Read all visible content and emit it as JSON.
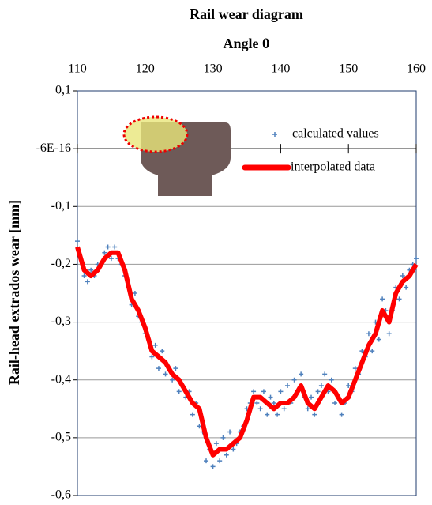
{
  "chart_data": {
    "type": "scatter",
    "title": "Rail wear diagram",
    "x_label": "Angle θ",
    "y_label": "Rail-head extrados wear  [mm]",
    "xlim": [
      110,
      160
    ],
    "xticks": [
      110,
      120,
      130,
      140,
      150,
      160
    ],
    "ylim": [
      -0.6,
      0.1
    ],
    "yticks": [
      {
        "value": 0.1,
        "label": "0,1"
      },
      {
        "value": -6e-16,
        "label": "-6E-16"
      },
      {
        "value": -0.1,
        "label": "-0,1"
      },
      {
        "value": -0.2,
        "label": "-0,2"
      },
      {
        "value": -0.3,
        "label": "-0,3"
      },
      {
        "value": -0.4,
        "label": "-0,4"
      },
      {
        "value": -0.5,
        "label": "-0,5"
      },
      {
        "value": -0.6,
        "label": "-0,6"
      }
    ],
    "grid": true,
    "legend": "upper right",
    "series": [
      {
        "name": "calculated values",
        "color": "#4f81bd",
        "marker": "+",
        "x": [
          110,
          110.5,
          111,
          111.5,
          112,
          112.5,
          113,
          113.5,
          114,
          114.5,
          115,
          115.5,
          116,
          116.5,
          117,
          117.5,
          118,
          118.5,
          119,
          119.5,
          120,
          120.5,
          121,
          121.5,
          122,
          122.5,
          123,
          123.5,
          124,
          124.5,
          125,
          125.5,
          126,
          126.5,
          127,
          127.5,
          128,
          128.5,
          129,
          129.5,
          130,
          130.5,
          131,
          131.5,
          132,
          132.5,
          133,
          133.5,
          134,
          134.5,
          135,
          135.5,
          136,
          136.5,
          137,
          137.5,
          138,
          138.5,
          139,
          139.5,
          140,
          140.5,
          141,
          141.5,
          142,
          142.5,
          143,
          143.5,
          144,
          144.5,
          145,
          145.5,
          146,
          146.5,
          147,
          147.5,
          148,
          148.5,
          149,
          149.5,
          150,
          150.5,
          151,
          151.5,
          152,
          152.5,
          153,
          153.5,
          154,
          154.5,
          155,
          155.5,
          156,
          156.5,
          157,
          157.5,
          158,
          158.5,
          159,
          159.5,
          160
        ],
        "values": [
          -0.16,
          -0.19,
          -0.22,
          -0.23,
          -0.21,
          -0.22,
          -0.2,
          -0.2,
          -0.18,
          -0.17,
          -0.19,
          -0.17,
          -0.19,
          -0.2,
          -0.22,
          -0.24,
          -0.27,
          -0.25,
          -0.29,
          -0.3,
          -0.32,
          -0.33,
          -0.36,
          -0.34,
          -0.38,
          -0.35,
          -0.39,
          -0.38,
          -0.4,
          -0.38,
          -0.42,
          -0.41,
          -0.43,
          -0.42,
          -0.46,
          -0.44,
          -0.48,
          -0.49,
          -0.54,
          -0.52,
          -0.55,
          -0.51,
          -0.54,
          -0.5,
          -0.53,
          -0.49,
          -0.52,
          -0.51,
          -0.49,
          -0.48,
          -0.45,
          -0.44,
          -0.42,
          -0.44,
          -0.45,
          -0.42,
          -0.46,
          -0.43,
          -0.44,
          -0.46,
          -0.42,
          -0.45,
          -0.41,
          -0.44,
          -0.4,
          -0.42,
          -0.39,
          -0.43,
          -0.45,
          -0.43,
          -0.46,
          -0.42,
          -0.41,
          -0.39,
          -0.42,
          -0.4,
          -0.44,
          -0.43,
          -0.46,
          -0.44,
          -0.41,
          -0.42,
          -0.38,
          -0.39,
          -0.35,
          -0.36,
          -0.32,
          -0.35,
          -0.3,
          -0.33,
          -0.26,
          -0.28,
          -0.32,
          -0.28,
          -0.24,
          -0.26,
          -0.22,
          -0.24,
          -0.21,
          -0.2,
          -0.19
        ]
      },
      {
        "name": "interpolated data",
        "color": "#ff0000",
        "marker": "line",
        "x": [
          110,
          111,
          112,
          113,
          114,
          115,
          116,
          117,
          118,
          119,
          120,
          121,
          122,
          123,
          124,
          125,
          126,
          127,
          128,
          129,
          130,
          131,
          132,
          133,
          134,
          135,
          136,
          137,
          138,
          139,
          140,
          141,
          142,
          143,
          144,
          145,
          146,
          147,
          148,
          149,
          150,
          151,
          152,
          153,
          154,
          155,
          156,
          157,
          158,
          159,
          160
        ],
        "values": [
          -0.17,
          -0.21,
          -0.22,
          -0.21,
          -0.19,
          -0.18,
          -0.18,
          -0.21,
          -0.26,
          -0.28,
          -0.31,
          -0.35,
          -0.36,
          -0.37,
          -0.39,
          -0.4,
          -0.42,
          -0.44,
          -0.45,
          -0.5,
          -0.53,
          -0.52,
          -0.52,
          -0.51,
          -0.5,
          -0.47,
          -0.43,
          -0.43,
          -0.44,
          -0.45,
          -0.44,
          -0.44,
          -0.43,
          -0.41,
          -0.44,
          -0.45,
          -0.43,
          -0.41,
          -0.42,
          -0.44,
          -0.43,
          -0.4,
          -0.37,
          -0.34,
          -0.32,
          -0.28,
          -0.3,
          -0.25,
          -0.23,
          -0.22,
          -0.2
        ]
      }
    ]
  }
}
